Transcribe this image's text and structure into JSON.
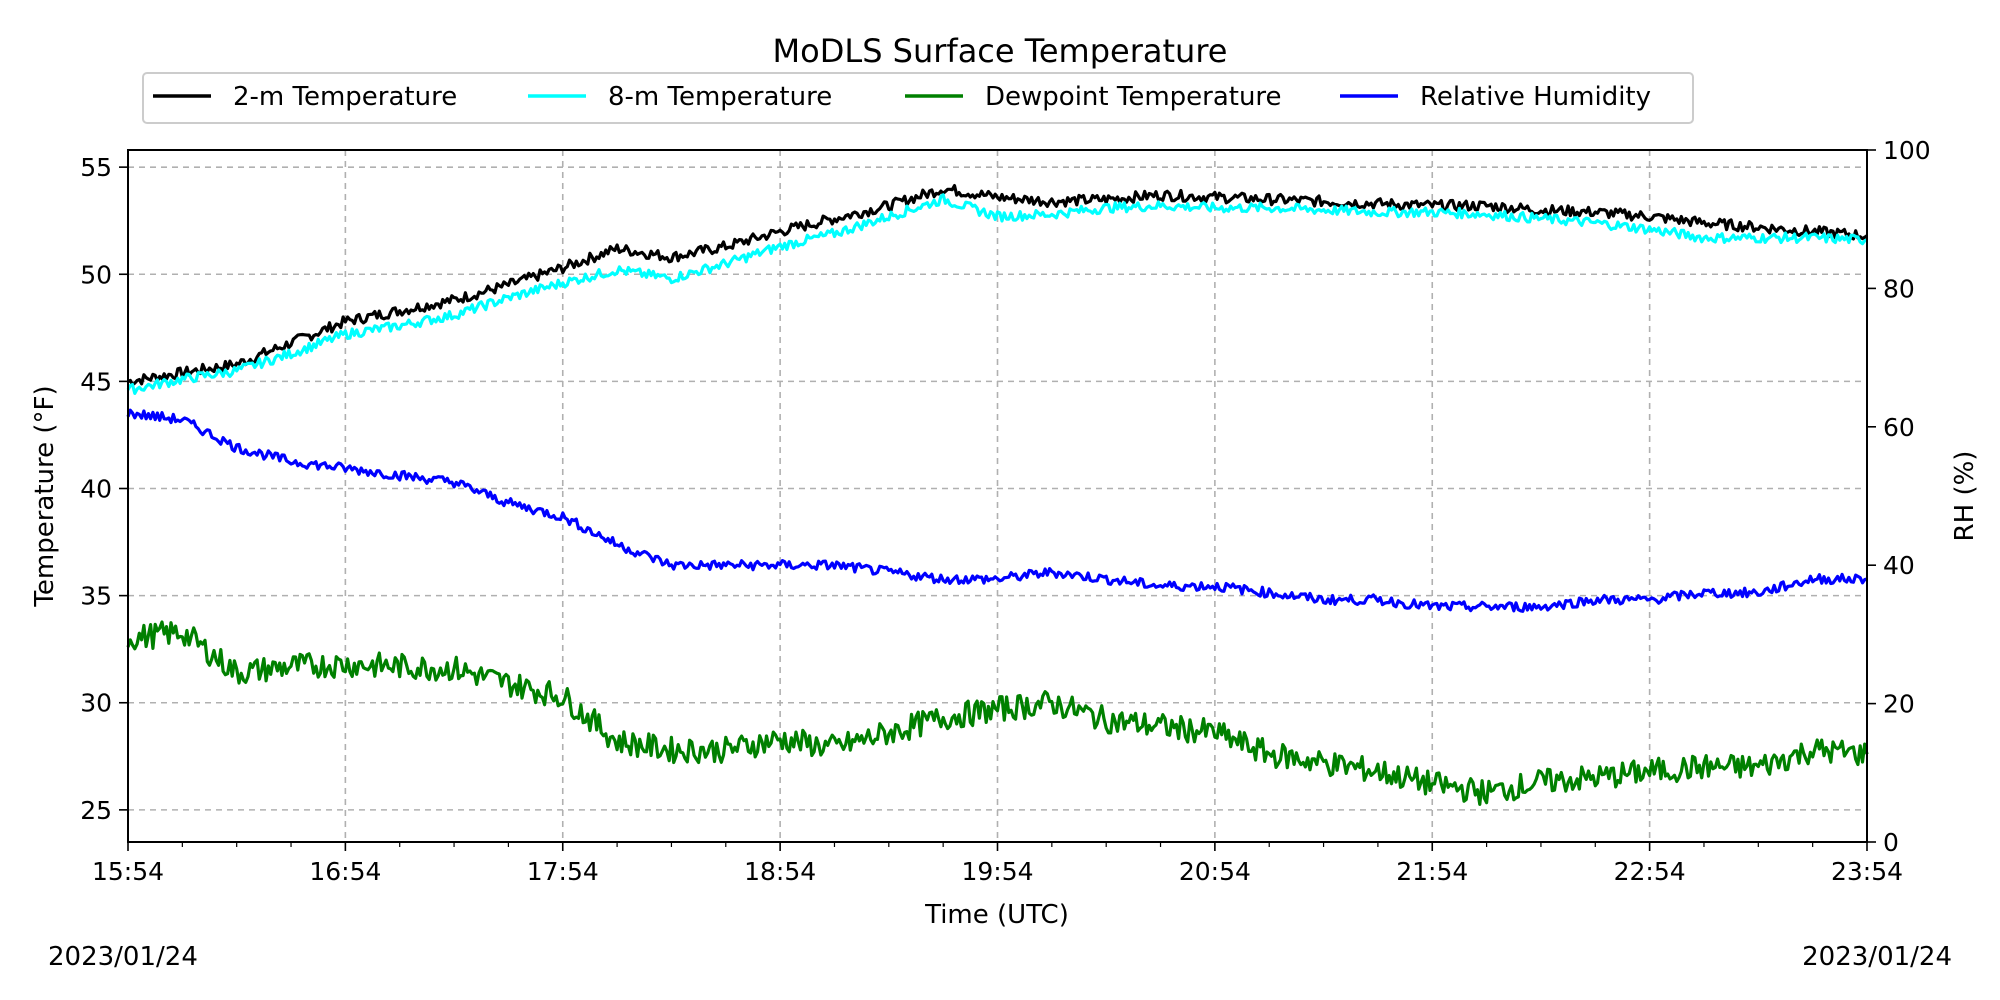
{
  "chart_data": {
    "type": "line",
    "title": "MoDLS Surface Temperature",
    "xlabel": "Time (UTC)",
    "ylabel": "Temperature (°F)",
    "y2label": "RH (%)",
    "x_ticks": [
      "15:54",
      "16:54",
      "17:54",
      "18:54",
      "19:54",
      "20:54",
      "21:54",
      "22:54",
      "23:54"
    ],
    "x_unit": "hours after 15:54 UTC",
    "xlim": [
      0,
      8
    ],
    "ylim": [
      23.5,
      55.8
    ],
    "y_ticks": [
      25,
      30,
      35,
      40,
      45,
      50,
      55
    ],
    "y2lim": [
      0,
      100
    ],
    "y2_ticks": [
      0,
      20,
      40,
      60,
      80,
      100
    ],
    "grid": true,
    "legend_position": "top",
    "dates": {
      "left": "2023/01/24",
      "right": "2023/01/24"
    },
    "series": [
      {
        "name": "2-m Temperature",
        "color": "#000000",
        "axis": "left",
        "x": [
          0,
          0.25,
          0.5,
          0.75,
          1.0,
          1.25,
          1.5,
          1.75,
          2.0,
          2.25,
          2.5,
          2.75,
          3.0,
          3.25,
          3.5,
          3.75,
          4.0,
          4.25,
          4.5,
          4.75,
          5.0,
          5.25,
          5.5,
          5.75,
          6.0,
          6.25,
          6.5,
          6.75,
          7.0,
          7.25,
          7.5,
          7.75,
          8.0
        ],
        "y": [
          45.0,
          45.4,
          45.8,
          46.8,
          47.8,
          48.3,
          48.8,
          49.5,
          50.3,
          51.2,
          50.8,
          51.3,
          52.0,
          52.6,
          53.2,
          54.0,
          53.6,
          53.4,
          53.5,
          53.7,
          53.6,
          53.5,
          53.4,
          53.3,
          53.2,
          53.2,
          53.0,
          52.9,
          52.7,
          52.4,
          52.2,
          52.0,
          51.8
        ]
      },
      {
        "name": "8-m Temperature",
        "color": "#00ffff",
        "axis": "left",
        "x": [
          0,
          0.25,
          0.5,
          0.75,
          1.0,
          1.25,
          1.5,
          1.75,
          2.0,
          2.25,
          2.5,
          2.75,
          3.0,
          3.25,
          3.5,
          3.75,
          4.0,
          4.25,
          4.5,
          4.75,
          5.0,
          5.25,
          5.5,
          5.75,
          6.0,
          6.25,
          6.5,
          6.75,
          7.0,
          7.25,
          7.5,
          7.75,
          8.0
        ],
        "y": [
          44.6,
          45.1,
          45.5,
          46.3,
          47.2,
          47.6,
          48.1,
          48.9,
          49.6,
          50.2,
          49.8,
          50.5,
          51.3,
          51.9,
          52.7,
          53.5,
          52.7,
          52.8,
          53.1,
          53.2,
          53.1,
          53.1,
          53.0,
          52.9,
          52.9,
          52.8,
          52.6,
          52.4,
          52.1,
          51.7,
          51.7,
          51.7,
          51.6
        ]
      },
      {
        "name": "Dewpoint Temperature",
        "color": "#008000",
        "axis": "left",
        "x": [
          0,
          0.25,
          0.5,
          0.75,
          1.0,
          1.25,
          1.5,
          1.75,
          2.0,
          2.25,
          2.5,
          2.75,
          3.0,
          3.25,
          3.5,
          3.75,
          4.0,
          4.25,
          4.5,
          4.75,
          5.0,
          5.25,
          5.5,
          5.75,
          6.0,
          6.25,
          6.5,
          6.75,
          7.0,
          7.25,
          7.5,
          7.75,
          8.0
        ],
        "y": [
          33.0,
          33.3,
          31.4,
          31.7,
          31.8,
          31.7,
          31.6,
          30.9,
          30.3,
          28.2,
          27.8,
          27.8,
          28.3,
          27.9,
          28.6,
          29.3,
          29.7,
          30.0,
          29.2,
          28.9,
          28.6,
          27.6,
          27.2,
          26.8,
          26.2,
          25.8,
          26.3,
          26.5,
          26.8,
          27.0,
          27.0,
          27.8,
          27.6
        ]
      },
      {
        "name": "Relative Humidity",
        "color": "#0000ff",
        "axis": "right",
        "x": [
          0,
          0.25,
          0.5,
          0.75,
          1.0,
          1.25,
          1.5,
          1.75,
          2.0,
          2.25,
          2.5,
          2.75,
          3.0,
          3.25,
          3.5,
          3.75,
          4.0,
          4.25,
          4.5,
          4.75,
          5.0,
          5.25,
          5.5,
          5.75,
          6.0,
          6.25,
          6.5,
          6.75,
          7.0,
          7.25,
          7.5,
          7.75,
          8.0
        ],
        "y": [
          62,
          61,
          57,
          55,
          54,
          53,
          52,
          49,
          47,
          43,
          40,
          40,
          40,
          40,
          39,
          38,
          38,
          39,
          38,
          37,
          37,
          36,
          35,
          35,
          34,
          34,
          34,
          35,
          35,
          36,
          36,
          38,
          38
        ]
      }
    ]
  }
}
